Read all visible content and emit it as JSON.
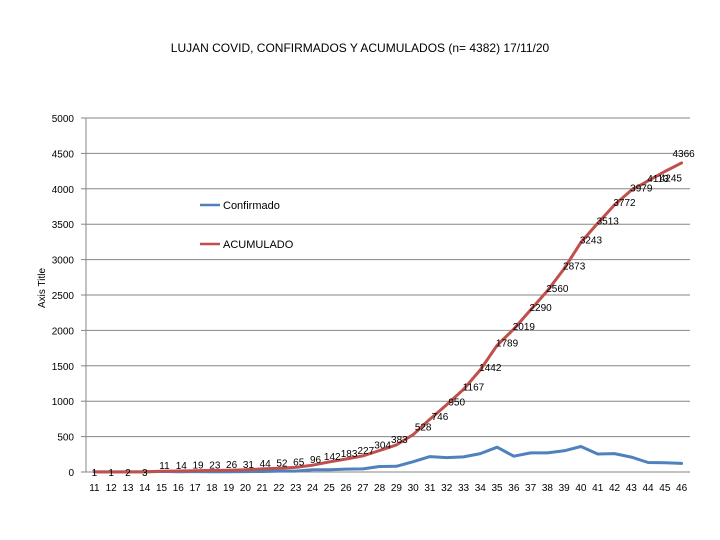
{
  "chart_data": {
    "type": "line",
    "title": "LUJAN COVID, CONFIRMADOS Y ACUMULADOS (n= 4382) 17/11/20",
    "xlabel": "",
    "ylabel": "Axis Title",
    "ylim": [
      0,
      5000
    ],
    "yticks": [
      0,
      500,
      1000,
      1500,
      2000,
      2500,
      3000,
      3500,
      4000,
      4500,
      5000
    ],
    "grid": true,
    "legend_position": "upper-left inside plot",
    "categories": [
      "11",
      "12",
      "13",
      "14",
      "15",
      "16",
      "17",
      "18",
      "19",
      "20",
      "21",
      "22",
      "23",
      "24",
      "25",
      "26",
      "27",
      "28",
      "29",
      "30",
      "31",
      "32",
      "33",
      "34",
      "35",
      "36",
      "37",
      "38",
      "39",
      "40",
      "41",
      "42",
      "43",
      "44",
      "45",
      "46"
    ],
    "series": [
      {
        "name": "Confirmado",
        "color": "#4f81bd",
        "values": [
          1,
          0,
          1,
          1,
          8,
          3,
          5,
          4,
          3,
          5,
          7,
          13,
          13,
          31,
          31,
          41,
          44,
          77,
          80,
          145,
          218,
          204,
          213,
          260,
          350,
          223,
          270,
          270,
          300,
          360,
          254,
          260,
          210,
          134,
          130,
          121
        ]
      },
      {
        "name": "ACUMULADO",
        "color": "#c0504d",
        "values": [
          1,
          1,
          2,
          3,
          11,
          14,
          19,
          23,
          26,
          31,
          44,
          52,
          65,
          96,
          142,
          183,
          227,
          304,
          383,
          528,
          746,
          950,
          1167,
          1442,
          1789,
          2019,
          2290,
          2560,
          2873,
          3243,
          3513,
          3772,
          3979,
          4113,
          4245,
          4366
        ]
      }
    ],
    "data_labels": {
      "ACUMULADO": [
        "1",
        "1",
        "2",
        "3",
        "11",
        "14",
        "19",
        "23",
        "26",
        "31",
        "44",
        "52",
        "65",
        "96",
        "142",
        "183",
        "227",
        "304",
        "383",
        "528",
        "746",
        "950",
        "1167",
        "1442",
        "1789",
        "2019",
        "2290",
        "2560",
        "2873",
        "3243",
        "3513",
        "3772",
        "3979",
        "4113",
        "4245",
        "4366"
      ]
    }
  }
}
